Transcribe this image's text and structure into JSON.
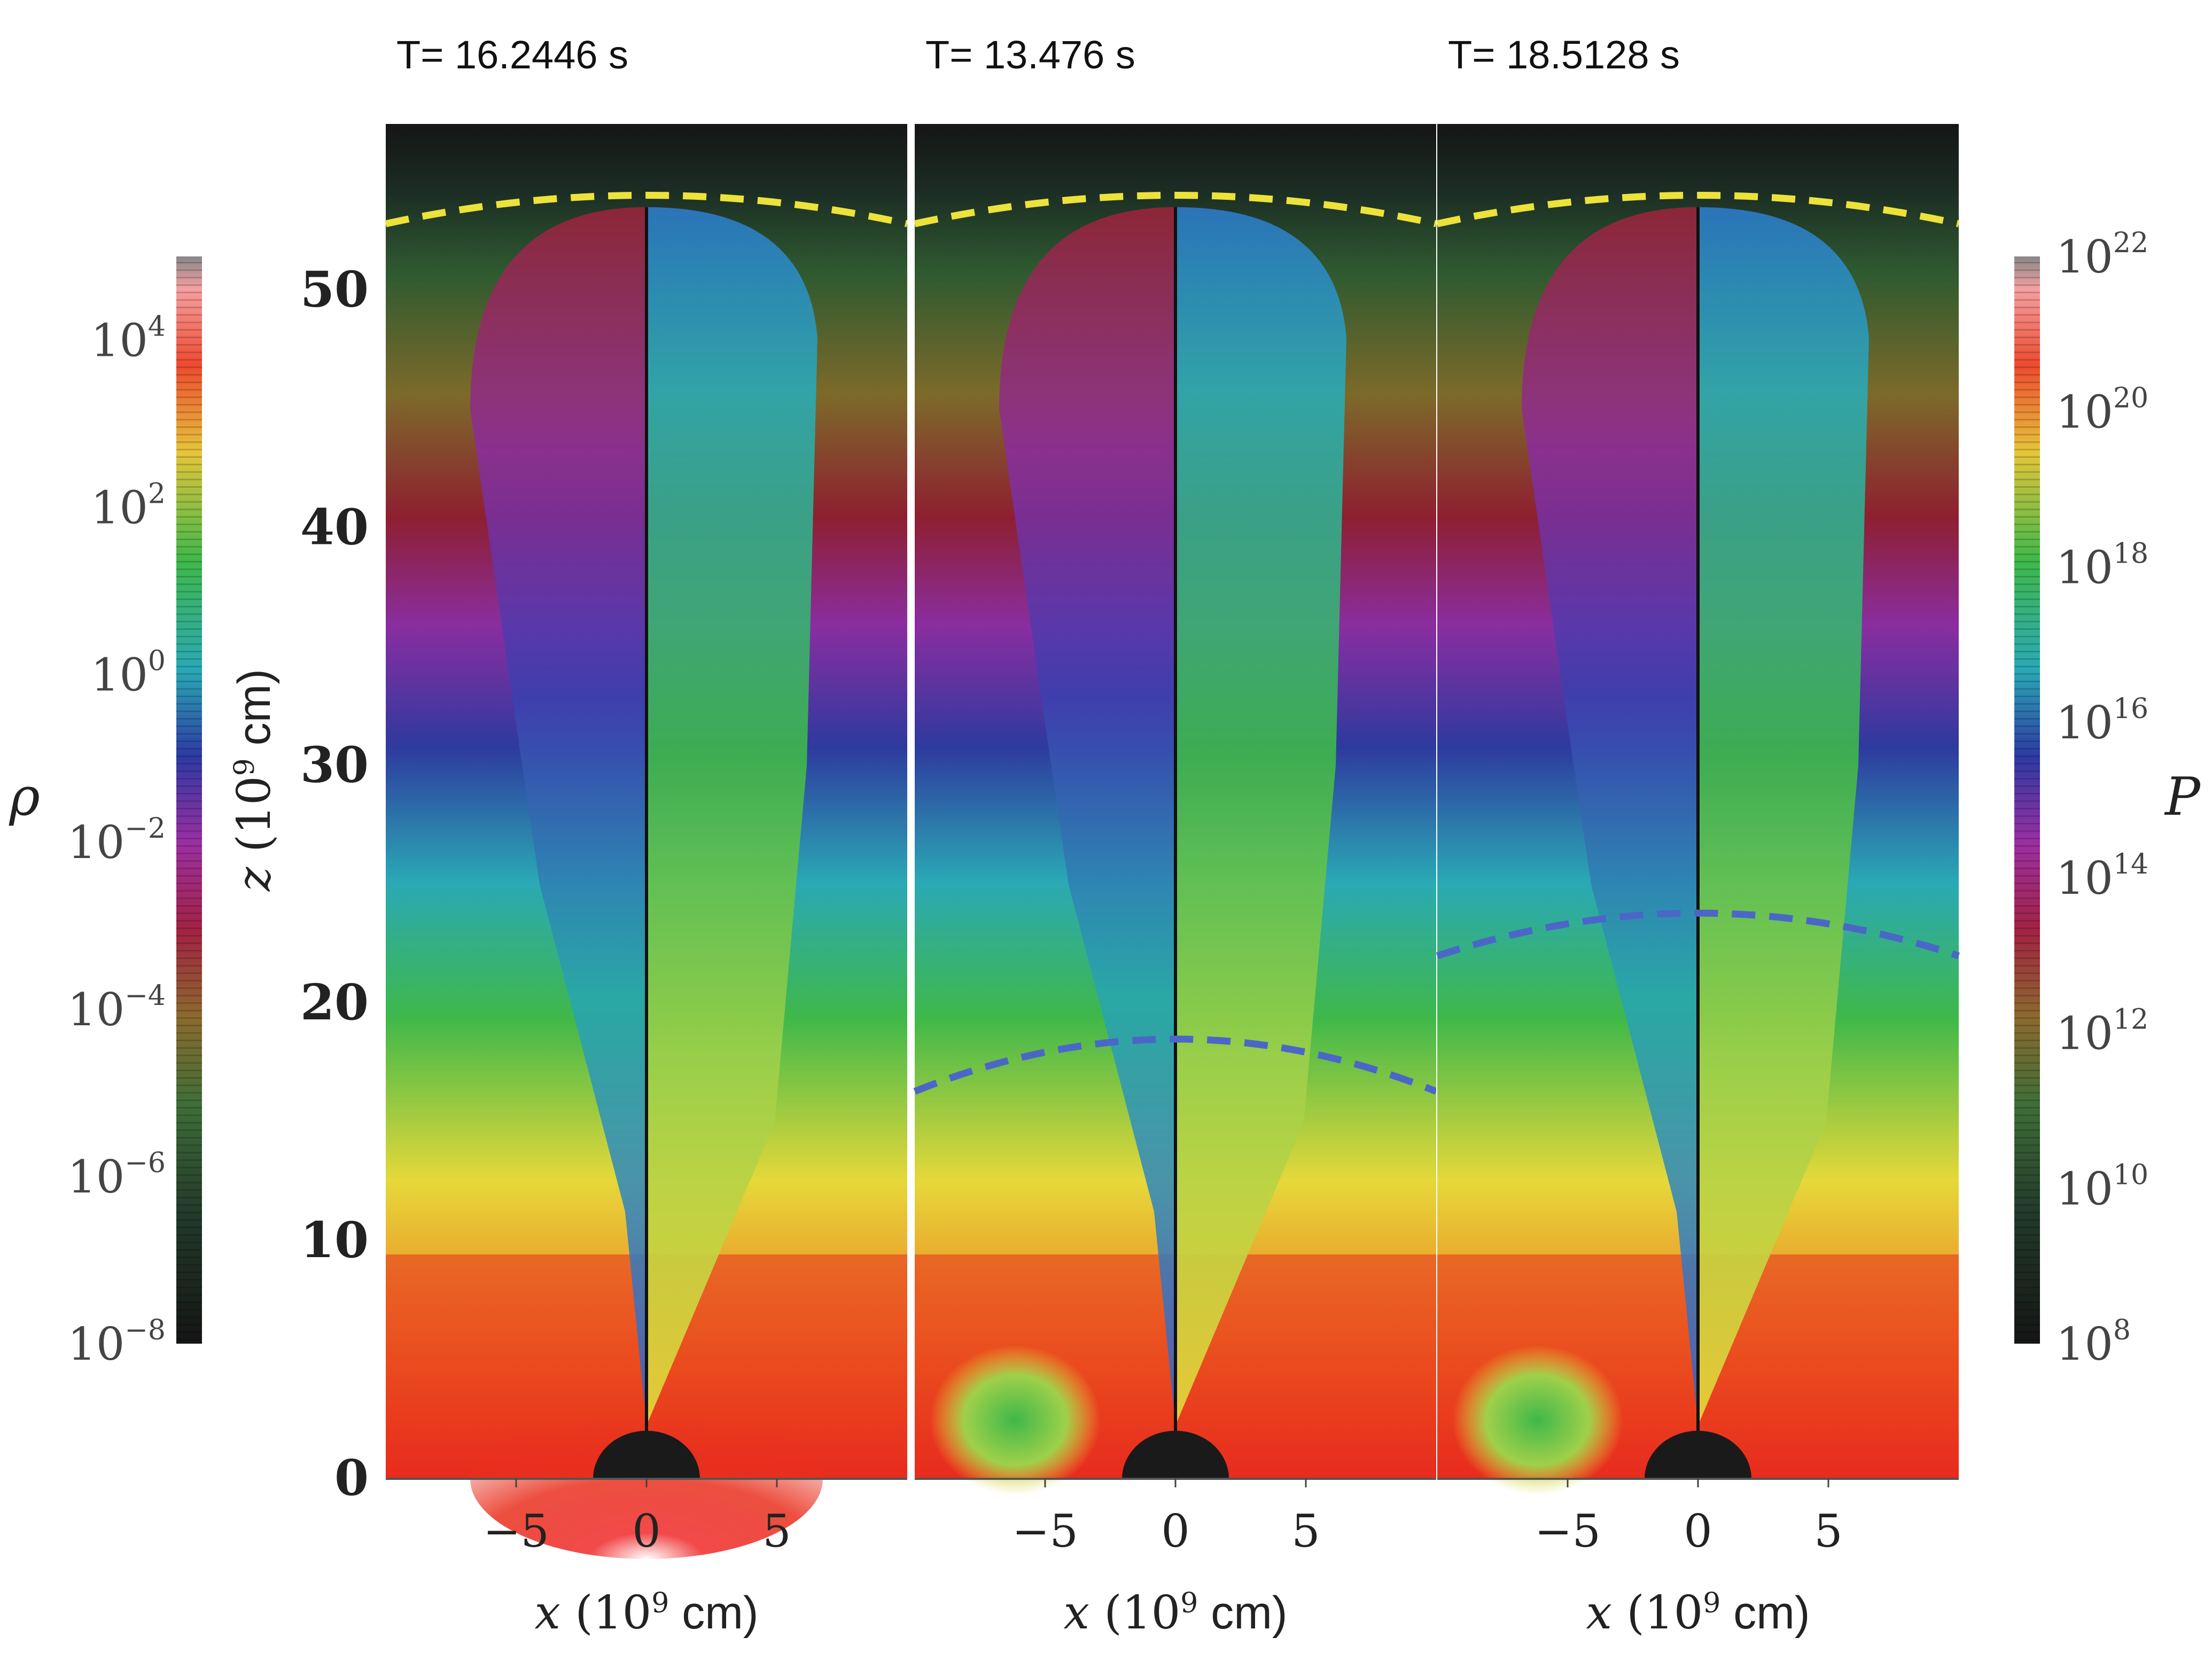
{
  "chart_data": {
    "type": "heatmap",
    "panels": [
      {
        "time_label": "T= 16.2446 s",
        "time_s": 16.2446,
        "shocks": [
          {
            "kind": "outer",
            "color": "#ede23a"
          }
        ]
      },
      {
        "time_label": "T= 13.476 s",
        "time_s": 13.476,
        "shocks": [
          {
            "kind": "outer",
            "color": "#ede23a"
          },
          {
            "kind": "inner",
            "color": "#4a67c8"
          }
        ]
      },
      {
        "time_label": "T= 18.5128 s",
        "time_s": 18.5128,
        "shocks": [
          {
            "kind": "outer",
            "color": "#ede23a"
          },
          {
            "kind": "inner",
            "color": "#4a67c8"
          }
        ]
      }
    ],
    "x_axis": {
      "label_var": "x",
      "label_unit": "(10",
      "label_exp": "9",
      "label_tail": " cm)",
      "ticks": [
        {
          "value": -5,
          "label": "−5"
        },
        {
          "value": 0,
          "label": "0"
        },
        {
          "value": 5,
          "label": "5"
        }
      ],
      "range": [
        -10,
        10
      ]
    },
    "y_axis": {
      "label_var": "z",
      "label_unit": "(10",
      "label_exp": "9",
      "label_tail": " cm)",
      "ticks": [
        {
          "value": 0,
          "label": "0"
        },
        {
          "value": 10,
          "label": "10"
        },
        {
          "value": 20,
          "label": "20"
        },
        {
          "value": 30,
          "label": "30"
        },
        {
          "value": 40,
          "label": "40"
        },
        {
          "value": 50,
          "label": "50"
        }
      ],
      "range": [
        0,
        57
      ]
    },
    "density_colorbar": {
      "label": "ρ",
      "scale": "log",
      "range_exp": [
        -8,
        5
      ],
      "ticks": [
        {
          "base": "10",
          "exp": "4"
        },
        {
          "base": "10",
          "exp": "2"
        },
        {
          "base": "10",
          "exp": "0"
        },
        {
          "base": "10",
          "exp": "−2"
        },
        {
          "base": "10",
          "exp": "−4"
        },
        {
          "base": "10",
          "exp": "−6"
        },
        {
          "base": "10",
          "exp": "−8"
        }
      ],
      "tick_values_exp": [
        4,
        2,
        0,
        -2,
        -4,
        -6,
        -8
      ]
    },
    "pressure_colorbar": {
      "label": "P",
      "scale": "log",
      "range_exp": [
        8,
        22
      ],
      "ticks": [
        {
          "base": "10",
          "exp": "22"
        },
        {
          "base": "10",
          "exp": "20"
        },
        {
          "base": "10",
          "exp": "18"
        },
        {
          "base": "10",
          "exp": "16"
        },
        {
          "base": "10",
          "exp": "14"
        },
        {
          "base": "10",
          "exp": "12"
        },
        {
          "base": "10",
          "exp": "10"
        },
        {
          "base": "10",
          "exp": "8"
        }
      ],
      "tick_values_exp": [
        22,
        20,
        18,
        16,
        14,
        12,
        10,
        8
      ]
    },
    "colors": {
      "outer_shock": "#ede23a",
      "inner_shock": "#4a67c8",
      "central_object": "#1a1a1a"
    }
  }
}
